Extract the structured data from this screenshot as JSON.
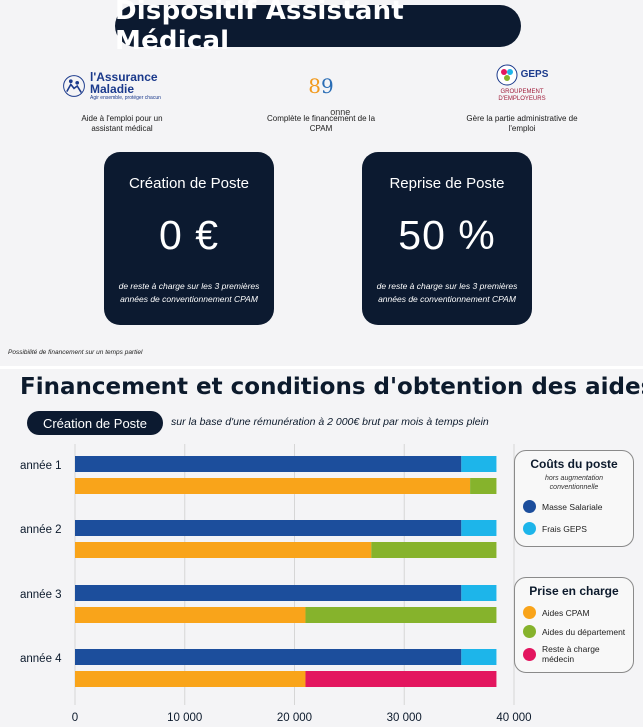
{
  "header": {
    "title": "Dispositif Assistant Médical"
  },
  "partners": [
    {
      "logo_text": "l'Assurance Maladie",
      "logo_tagline": "Agir ensemble, protéger chacun",
      "icon": "assurance-maladie-logo",
      "caption": "Aide à l'emploi pour un assistant médical"
    },
    {
      "logo_text": "89",
      "logo_sub": "onne",
      "icon": "yonne-logo",
      "caption": "Complète le financement de la CPAM"
    },
    {
      "logo_text": "GEPS",
      "logo_sub": "GROUPEMENT D'EMPLOYEURS",
      "icon": "geps-logo",
      "caption": "Gère la partie administrative de l'emploi"
    }
  ],
  "cards": [
    {
      "title": "Création de Poste",
      "value": "0 €",
      "note": "de reste à charge sur les 3 premières années de conventionnement CPAM"
    },
    {
      "title": "Reprise de Poste",
      "value": "50 %",
      "note": "de reste à charge sur les 3 premières années de conventionnement CPAM"
    }
  ],
  "footnote": "Possibilité de financement sur un temps partiel",
  "section": {
    "title": "Financement et conditions d'obtention des aides",
    "subtitle": "Création de Poste",
    "subtitle_note": "sur la base d'une rémunération à 2 000€ brut par mois à temps plein"
  },
  "legends": {
    "costs": {
      "title": "Coûts du poste",
      "subtitle": "hors augmentation conventionnelle",
      "items": [
        {
          "label": "Masse Salariale",
          "color": "#1c4e9c"
        },
        {
          "label": "Frais GEPS",
          "color": "#1db5ea"
        }
      ]
    },
    "coverage": {
      "title": "Prise en charge",
      "items": [
        {
          "label": "Aides CPAM",
          "color": "#f9a41a"
        },
        {
          "label": "Aides du département",
          "color": "#86b32c"
        },
        {
          "label": "Reste à charge médecin",
          "color": "#e3165f"
        }
      ]
    }
  },
  "chart_data": {
    "type": "bar",
    "orientation": "horizontal",
    "stacked": true,
    "categories": [
      "année 1",
      "année 2",
      "année 3",
      "année 4"
    ],
    "xlim": [
      0,
      40000
    ],
    "xticks": [
      0,
      10000,
      20000,
      30000,
      40000
    ],
    "xtick_labels": [
      "0",
      "10 000",
      "20 000",
      "30 000",
      "40 000"
    ],
    "grid": true,
    "cost_series": [
      {
        "name": "Masse Salariale",
        "color": "#1c4e9c",
        "values": [
          35200,
          35200,
          35200,
          35200
        ]
      },
      {
        "name": "Frais GEPS",
        "color": "#1db5ea",
        "values": [
          3200,
          3200,
          3200,
          3200
        ]
      }
    ],
    "coverage_series": [
      {
        "name": "Aides CPAM",
        "color": "#f9a41a",
        "values": [
          36000,
          27000,
          21000,
          21000
        ]
      },
      {
        "name": "Aides du département",
        "color": "#86b32c",
        "values": [
          2400,
          11400,
          17400,
          0
        ]
      },
      {
        "name": "Reste à charge médecin",
        "color": "#e3165f",
        "values": [
          0,
          0,
          0,
          17400
        ]
      }
    ]
  }
}
